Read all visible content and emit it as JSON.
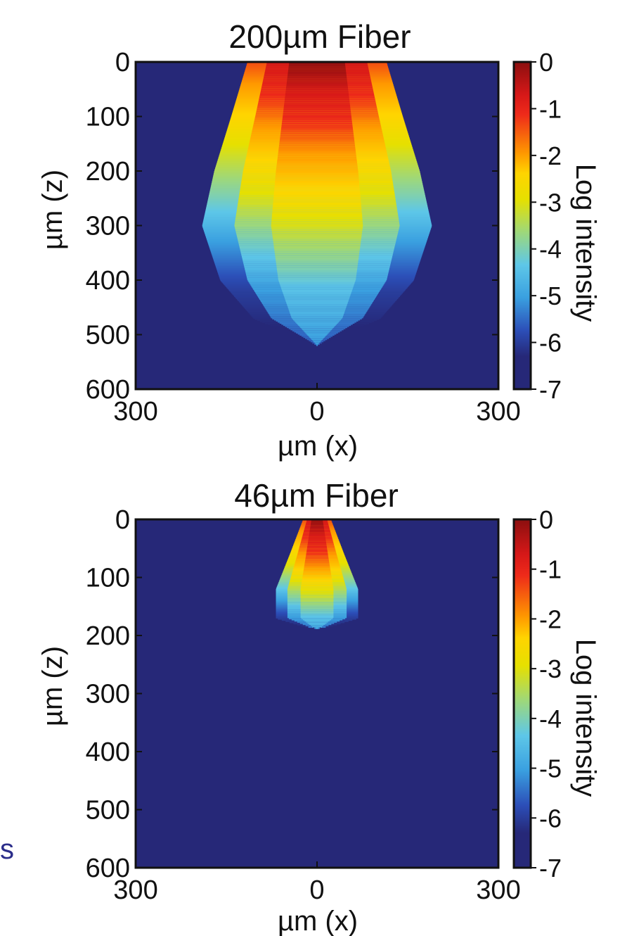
{
  "colors": {
    "background": "#262878",
    "colormap": [
      "#262878",
      "#2c4fb8",
      "#3aa0e0",
      "#5ec7e8",
      "#9ed87a",
      "#e6e000",
      "#ffd400",
      "#ff9900",
      "#ee2a1a",
      "#d61818",
      "#8b0f0f"
    ]
  },
  "edge_fragment": "s",
  "chart_data": [
    {
      "type": "heatmap",
      "title": "200µm Fiber",
      "xlabel": "µm (x)",
      "ylabel": "µm (z)",
      "xlim": [
        -300,
        300
      ],
      "ylim": [
        600,
        0
      ],
      "x_ticks": [
        "300",
        "0",
        "300"
      ],
      "y_ticks": [
        "0",
        "100",
        "200",
        "300",
        "400",
        "500",
        "600"
      ],
      "colorbar": {
        "label": "Log intensity",
        "ticks": [
          "0",
          "-1",
          "-2",
          "-3",
          "-4",
          "-5",
          "-6",
          "-7"
        ],
        "range": [
          -7,
          0
        ]
      },
      "fiber_half_width_um": 115,
      "beam_profile": [
        {
          "z": 0,
          "half_width": 115
        },
        {
          "z": 100,
          "half_width": 142
        },
        {
          "z": 200,
          "half_width": 170
        },
        {
          "z": 300,
          "half_width": 190
        },
        {
          "z": 400,
          "half_width": 160
        },
        {
          "z": 470,
          "half_width": 105
        },
        {
          "z": 520,
          "half_width": 0
        }
      ],
      "axial_log_intensity": [
        {
          "z": 0,
          "value": 0
        },
        {
          "z": 80,
          "value": -1
        },
        {
          "z": 160,
          "value": -2
        },
        {
          "z": 250,
          "value": -3
        },
        {
          "z": 330,
          "value": -4
        },
        {
          "z": 420,
          "value": -5
        },
        {
          "z": 520,
          "value": -5.6
        }
      ]
    },
    {
      "type": "heatmap",
      "title": "46µm Fiber",
      "xlabel": "µm (x)",
      "ylabel": "µm (z)",
      "xlim": [
        -300,
        300
      ],
      "ylim": [
        600,
        0
      ],
      "x_ticks": [
        "300",
        "0",
        "300"
      ],
      "y_ticks": [
        "0",
        "100",
        "200",
        "300",
        "400",
        "500",
        "600"
      ],
      "colorbar": {
        "label": "Log intensity",
        "ticks": [
          "0",
          "-1",
          "-2",
          "-3",
          "-4",
          "-5",
          "-6",
          "-7"
        ],
        "range": [
          -7,
          0
        ]
      },
      "fiber_half_width_um": 23,
      "beam_profile": [
        {
          "z": 0,
          "half_width": 23
        },
        {
          "z": 60,
          "half_width": 45
        },
        {
          "z": 120,
          "half_width": 68
        },
        {
          "z": 170,
          "half_width": 68
        },
        {
          "z": 185,
          "half_width": 20
        },
        {
          "z": 188,
          "half_width": 0
        }
      ],
      "axial_log_intensity": [
        {
          "z": 0,
          "value": 0
        },
        {
          "z": 40,
          "value": -1
        },
        {
          "z": 80,
          "value": -2
        },
        {
          "z": 110,
          "value": -3
        },
        {
          "z": 140,
          "value": -4
        },
        {
          "z": 170,
          "value": -5
        },
        {
          "z": 188,
          "value": -5.4
        }
      ]
    }
  ]
}
